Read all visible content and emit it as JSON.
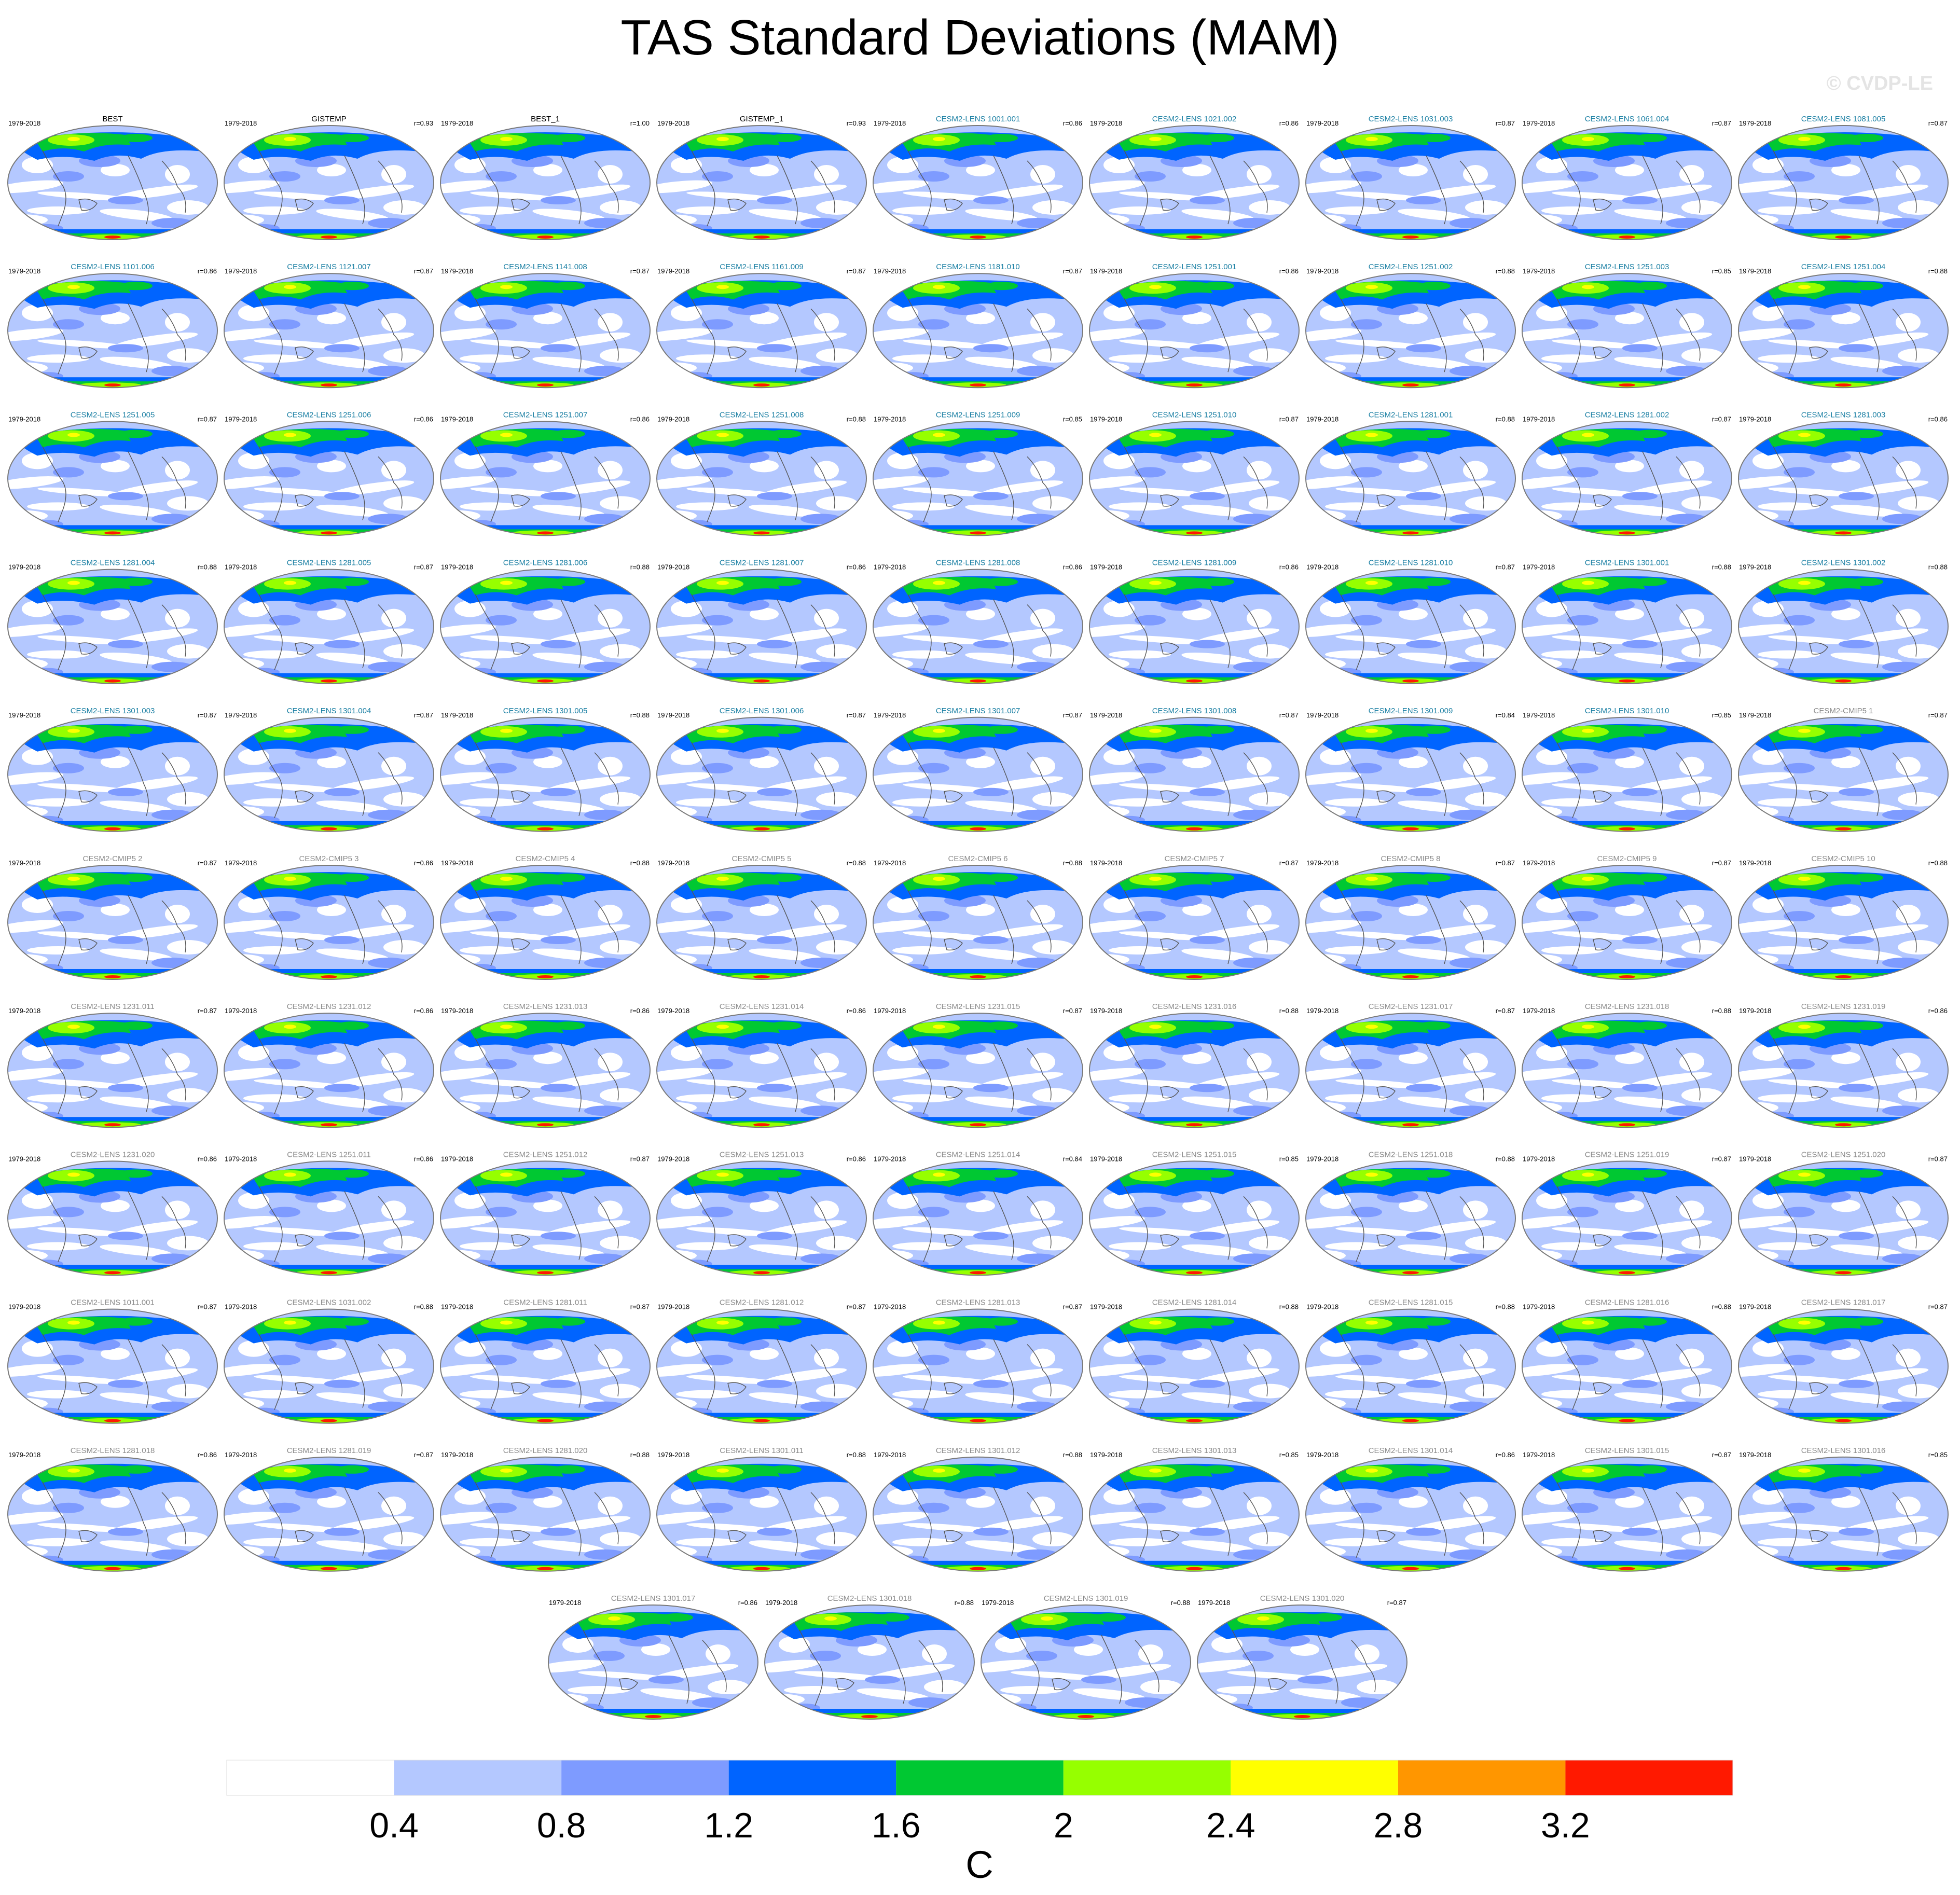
{
  "title": "TAS Standard Deviations (MAM)",
  "watermark": "© CVDP-LE",
  "period": "1979-2018",
  "colors": {
    "obs_title": "#000000",
    "lens_title": "#1a7fa3",
    "cmip_title": "#8a8a8a",
    "coast": "#555555"
  },
  "chart_data": {
    "type": "heatmap",
    "projection": "global map",
    "panels": [
      {
        "title": "BEST",
        "r": "",
        "kind": "obs"
      },
      {
        "title": "GISTEMP",
        "r": "r=0.93",
        "kind": "obs"
      },
      {
        "title": "BEST_1",
        "r": "r=1.00",
        "kind": "obs"
      },
      {
        "title": "GISTEMP_1",
        "r": "r=0.93",
        "kind": "obs"
      },
      {
        "title": "CESM2-LENS 1001.001",
        "r": "r=0.86",
        "kind": "lens"
      },
      {
        "title": "CESM2-LENS 1021.002",
        "r": "r=0.86",
        "kind": "lens"
      },
      {
        "title": "CESM2-LENS 1031.003",
        "r": "r=0.87",
        "kind": "lens"
      },
      {
        "title": "CESM2-LENS 1061.004",
        "r": "r=0.87",
        "kind": "lens"
      },
      {
        "title": "CESM2-LENS 1081.005",
        "r": "r=0.87",
        "kind": "lens"
      },
      {
        "title": "CESM2-LENS 1101.006",
        "r": "r=0.86",
        "kind": "lens"
      },
      {
        "title": "CESM2-LENS 1121.007",
        "r": "r=0.87",
        "kind": "lens"
      },
      {
        "title": "CESM2-LENS 1141.008",
        "r": "r=0.87",
        "kind": "lens"
      },
      {
        "title": "CESM2-LENS 1161.009",
        "r": "r=0.87",
        "kind": "lens"
      },
      {
        "title": "CESM2-LENS 1181.010",
        "r": "r=0.87",
        "kind": "lens"
      },
      {
        "title": "CESM2-LENS 1251.001",
        "r": "r=0.86",
        "kind": "lens"
      },
      {
        "title": "CESM2-LENS 1251.002",
        "r": "r=0.88",
        "kind": "lens"
      },
      {
        "title": "CESM2-LENS 1251.003",
        "r": "r=0.85",
        "kind": "lens"
      },
      {
        "title": "CESM2-LENS 1251.004",
        "r": "r=0.88",
        "kind": "lens"
      },
      {
        "title": "CESM2-LENS 1251.005",
        "r": "r=0.87",
        "kind": "lens"
      },
      {
        "title": "CESM2-LENS 1251.006",
        "r": "r=0.86",
        "kind": "lens"
      },
      {
        "title": "CESM2-LENS 1251.007",
        "r": "r=0.86",
        "kind": "lens"
      },
      {
        "title": "CESM2-LENS 1251.008",
        "r": "r=0.88",
        "kind": "lens"
      },
      {
        "title": "CESM2-LENS 1251.009",
        "r": "r=0.85",
        "kind": "lens"
      },
      {
        "title": "CESM2-LENS 1251.010",
        "r": "r=0.87",
        "kind": "lens"
      },
      {
        "title": "CESM2-LENS 1281.001",
        "r": "r=0.88",
        "kind": "lens"
      },
      {
        "title": "CESM2-LENS 1281.002",
        "r": "r=0.87",
        "kind": "lens"
      },
      {
        "title": "CESM2-LENS 1281.003",
        "r": "r=0.86",
        "kind": "lens"
      },
      {
        "title": "CESM2-LENS 1281.004",
        "r": "r=0.88",
        "kind": "lens"
      },
      {
        "title": "CESM2-LENS 1281.005",
        "r": "r=0.87",
        "kind": "lens"
      },
      {
        "title": "CESM2-LENS 1281.006",
        "r": "r=0.88",
        "kind": "lens"
      },
      {
        "title": "CESM2-LENS 1281.007",
        "r": "r=0.86",
        "kind": "lens"
      },
      {
        "title": "CESM2-LENS 1281.008",
        "r": "r=0.86",
        "kind": "lens"
      },
      {
        "title": "CESM2-LENS 1281.009",
        "r": "r=0.86",
        "kind": "lens"
      },
      {
        "title": "CESM2-LENS 1281.010",
        "r": "r=0.87",
        "kind": "lens"
      },
      {
        "title": "CESM2-LENS 1301.001",
        "r": "r=0.88",
        "kind": "lens"
      },
      {
        "title": "CESM2-LENS 1301.002",
        "r": "r=0.88",
        "kind": "lens"
      },
      {
        "title": "CESM2-LENS 1301.003",
        "r": "r=0.87",
        "kind": "lens"
      },
      {
        "title": "CESM2-LENS 1301.004",
        "r": "r=0.87",
        "kind": "lens"
      },
      {
        "title": "CESM2-LENS 1301.005",
        "r": "r=0.88",
        "kind": "lens"
      },
      {
        "title": "CESM2-LENS 1301.006",
        "r": "r=0.87",
        "kind": "lens"
      },
      {
        "title": "CESM2-LENS 1301.007",
        "r": "r=0.87",
        "kind": "lens"
      },
      {
        "title": "CESM2-LENS 1301.008",
        "r": "r=0.87",
        "kind": "lens"
      },
      {
        "title": "CESM2-LENS 1301.009",
        "r": "r=0.84",
        "kind": "lens"
      },
      {
        "title": "CESM2-LENS 1301.010",
        "r": "r=0.85",
        "kind": "lens"
      },
      {
        "title": "CESM2-CMIP5 1",
        "r": "r=0.87",
        "kind": "cmip"
      },
      {
        "title": "CESM2-CMIP5 2",
        "r": "r=0.87",
        "kind": "cmip"
      },
      {
        "title": "CESM2-CMIP5 3",
        "r": "r=0.86",
        "kind": "cmip"
      },
      {
        "title": "CESM2-CMIP5 4",
        "r": "r=0.88",
        "kind": "cmip"
      },
      {
        "title": "CESM2-CMIP5 5",
        "r": "r=0.88",
        "kind": "cmip"
      },
      {
        "title": "CESM2-CMIP5 6",
        "r": "r=0.88",
        "kind": "cmip"
      },
      {
        "title": "CESM2-CMIP5 7",
        "r": "r=0.87",
        "kind": "cmip"
      },
      {
        "title": "CESM2-CMIP5 8",
        "r": "r=0.87",
        "kind": "cmip"
      },
      {
        "title": "CESM2-CMIP5 9",
        "r": "r=0.87",
        "kind": "cmip"
      },
      {
        "title": "CESM2-CMIP5 10",
        "r": "r=0.88",
        "kind": "cmip"
      },
      {
        "title": "CESM2-LENS 1231.011",
        "r": "r=0.87",
        "kind": "cmip"
      },
      {
        "title": "CESM2-LENS 1231.012",
        "r": "r=0.86",
        "kind": "cmip"
      },
      {
        "title": "CESM2-LENS 1231.013",
        "r": "r=0.86",
        "kind": "cmip"
      },
      {
        "title": "CESM2-LENS 1231.014",
        "r": "r=0.86",
        "kind": "cmip"
      },
      {
        "title": "CESM2-LENS 1231.015",
        "r": "r=0.87",
        "kind": "cmip"
      },
      {
        "title": "CESM2-LENS 1231.016",
        "r": "r=0.88",
        "kind": "cmip"
      },
      {
        "title": "CESM2-LENS 1231.017",
        "r": "r=0.87",
        "kind": "cmip"
      },
      {
        "title": "CESM2-LENS 1231.018",
        "r": "r=0.88",
        "kind": "cmip"
      },
      {
        "title": "CESM2-LENS 1231.019",
        "r": "r=0.86",
        "kind": "cmip"
      },
      {
        "title": "CESM2-LENS 1231.020",
        "r": "r=0.86",
        "kind": "cmip"
      },
      {
        "title": "CESM2-LENS 1251.011",
        "r": "r=0.86",
        "kind": "cmip"
      },
      {
        "title": "CESM2-LENS 1251.012",
        "r": "r=0.87",
        "kind": "cmip"
      },
      {
        "title": "CESM2-LENS 1251.013",
        "r": "r=0.86",
        "kind": "cmip"
      },
      {
        "title": "CESM2-LENS 1251.014",
        "r": "r=0.84",
        "kind": "cmip"
      },
      {
        "title": "CESM2-LENS 1251.015",
        "r": "r=0.85",
        "kind": "cmip"
      },
      {
        "title": "CESM2-LENS 1251.018",
        "r": "r=0.88",
        "kind": "cmip"
      },
      {
        "title": "CESM2-LENS 1251.019",
        "r": "r=0.87",
        "kind": "cmip"
      },
      {
        "title": "CESM2-LENS 1251.020",
        "r": "r=0.87",
        "kind": "cmip"
      },
      {
        "title": "CESM2-LENS 1011.001",
        "r": "r=0.87",
        "kind": "cmip"
      },
      {
        "title": "CESM2-LENS 1031.002",
        "r": "r=0.88",
        "kind": "cmip"
      },
      {
        "title": "CESM2-LENS 1281.011",
        "r": "r=0.87",
        "kind": "cmip"
      },
      {
        "title": "CESM2-LENS 1281.012",
        "r": "r=0.87",
        "kind": "cmip"
      },
      {
        "title": "CESM2-LENS 1281.013",
        "r": "r=0.87",
        "kind": "cmip"
      },
      {
        "title": "CESM2-LENS 1281.014",
        "r": "r=0.88",
        "kind": "cmip"
      },
      {
        "title": "CESM2-LENS 1281.015",
        "r": "r=0.88",
        "kind": "cmip"
      },
      {
        "title": "CESM2-LENS 1281.016",
        "r": "r=0.88",
        "kind": "cmip"
      },
      {
        "title": "CESM2-LENS 1281.017",
        "r": "r=0.87",
        "kind": "cmip"
      },
      {
        "title": "CESM2-LENS 1281.018",
        "r": "r=0.86",
        "kind": "cmip"
      },
      {
        "title": "CESM2-LENS 1281.019",
        "r": "r=0.87",
        "kind": "cmip"
      },
      {
        "title": "CESM2-LENS 1281.020",
        "r": "r=0.88",
        "kind": "cmip"
      },
      {
        "title": "CESM2-LENS 1301.011",
        "r": "r=0.88",
        "kind": "cmip"
      },
      {
        "title": "CESM2-LENS 1301.012",
        "r": "r=0.88",
        "kind": "cmip"
      },
      {
        "title": "CESM2-LENS 1301.013",
        "r": "r=0.85",
        "kind": "cmip"
      },
      {
        "title": "CESM2-LENS 1301.014",
        "r": "r=0.86",
        "kind": "cmip"
      },
      {
        "title": "CESM2-LENS 1301.015",
        "r": "r=0.87",
        "kind": "cmip"
      },
      {
        "title": "CESM2-LENS 1301.016",
        "r": "r=0.85",
        "kind": "cmip"
      },
      {
        "title": "CESM2-LENS 1301.017",
        "r": "r=0.86",
        "kind": "cmip"
      },
      {
        "title": "CESM2-LENS 1301.018",
        "r": "r=0.88",
        "kind": "cmip"
      },
      {
        "title": "CESM2-LENS 1301.019",
        "r": "r=0.88",
        "kind": "cmip"
      },
      {
        "title": "CESM2-LENS 1301.020",
        "r": "r=0.87",
        "kind": "cmip"
      }
    ],
    "colorbar": {
      "levels": [
        0.4,
        0.8,
        1.2,
        1.6,
        2,
        2.4,
        2.8,
        3.2
      ],
      "tick_labels": [
        "0.4",
        "0.8",
        "1.2",
        "1.6",
        "2",
        "2.4",
        "2.8",
        "3.2"
      ],
      "colors": [
        "#ffffff",
        "#b4c8ff",
        "#7e9bff",
        "#0064ff",
        "#00c832",
        "#96ff00",
        "#ffff00",
        "#ff9600",
        "#ff1900"
      ],
      "units": "C"
    }
  }
}
